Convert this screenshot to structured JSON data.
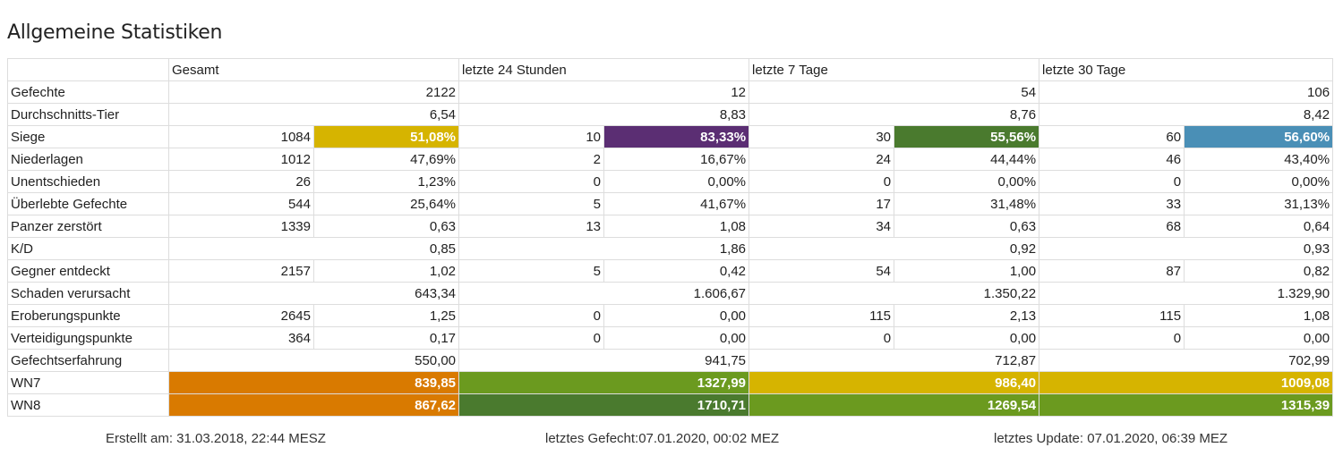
{
  "title": "Allgemeine Statistiken",
  "headers": [
    "Gesamt",
    "letzte 24 Stunden",
    "letzte 7 Tage",
    "letzte 30 Tage"
  ],
  "rows": [
    {
      "label": "Gefechte",
      "cells": [
        [
          "2122"
        ],
        [
          "12"
        ],
        [
          "54"
        ],
        [
          "106"
        ]
      ]
    },
    {
      "label": "Durchschnitts-Tier",
      "cells": [
        [
          "6,54"
        ],
        [
          "8,83"
        ],
        [
          "8,76"
        ],
        [
          "8,42"
        ]
      ]
    },
    {
      "label": "Siege",
      "cells": [
        [
          "1084",
          "51,08%"
        ],
        [
          "10",
          "83,33%"
        ],
        [
          "30",
          "55,56%"
        ],
        [
          "60",
          "56,60%"
        ]
      ]
    },
    {
      "label": "Niederlagen",
      "cells": [
        [
          "1012",
          "47,69%"
        ],
        [
          "2",
          "16,67%"
        ],
        [
          "24",
          "44,44%"
        ],
        [
          "46",
          "43,40%"
        ]
      ]
    },
    {
      "label": "Unentschieden",
      "cells": [
        [
          "26",
          "1,23%"
        ],
        [
          "0",
          "0,00%"
        ],
        [
          "0",
          "0,00%"
        ],
        [
          "0",
          "0,00%"
        ]
      ]
    },
    {
      "label": "Überlebte Gefechte",
      "cells": [
        [
          "544",
          "25,64%"
        ],
        [
          "5",
          "41,67%"
        ],
        [
          "17",
          "31,48%"
        ],
        [
          "33",
          "31,13%"
        ]
      ]
    },
    {
      "label": "Panzer zerstört",
      "cells": [
        [
          "1339",
          "0,63"
        ],
        [
          "13",
          "1,08"
        ],
        [
          "34",
          "0,63"
        ],
        [
          "68",
          "0,64"
        ]
      ]
    },
    {
      "label": "K/D",
      "cells": [
        [
          "0,85"
        ],
        [
          "1,86"
        ],
        [
          "0,92"
        ],
        [
          "0,93"
        ]
      ]
    },
    {
      "label": "Gegner entdeckt",
      "cells": [
        [
          "2157",
          "1,02"
        ],
        [
          "5",
          "0,42"
        ],
        [
          "54",
          "1,00"
        ],
        [
          "87",
          "0,82"
        ]
      ]
    },
    {
      "label": "Schaden verursacht",
      "cells": [
        [
          "643,34"
        ],
        [
          "1.606,67"
        ],
        [
          "1.350,22"
        ],
        [
          "1.329,90"
        ]
      ]
    },
    {
      "label": "Eroberungspunkte",
      "cells": [
        [
          "2645",
          "1,25"
        ],
        [
          "0",
          "0,00"
        ],
        [
          "115",
          "2,13"
        ],
        [
          "115",
          "1,08"
        ]
      ]
    },
    {
      "label": "Verteidigungspunkte",
      "cells": [
        [
          "364",
          "0,17"
        ],
        [
          "0",
          "0,00"
        ],
        [
          "0",
          "0,00"
        ],
        [
          "0",
          "0,00"
        ]
      ]
    },
    {
      "label": "Gefechtserfahrung",
      "cells": [
        [
          "550,00"
        ],
        [
          "941,75"
        ],
        [
          "712,87"
        ],
        [
          "702,99"
        ]
      ]
    },
    {
      "label": "WN7",
      "cells": [
        [
          "839,85"
        ],
        [
          "1327,99"
        ],
        [
          "986,40"
        ],
        [
          "1009,08"
        ]
      ],
      "colors": [
        "#d97a00",
        "#6b9a1f",
        "#d6b400",
        "#d6b400"
      ]
    },
    {
      "label": "WN8",
      "cells": [
        [
          "867,62"
        ],
        [
          "1710,71"
        ],
        [
          "1269,54"
        ],
        [
          "1315,39"
        ]
      ],
      "colors": [
        "#d97a00",
        "#4a7a2e",
        "#6b9a1f",
        "#6b9a1f"
      ]
    }
  ],
  "win_colors": [
    "#d6b400",
    "#5b2e73",
    "#4a7a2e",
    "#4a8fb6"
  ],
  "footer": {
    "created": "Erstellt am: 31.03.2018, 22:44 MESZ",
    "last_battle": "letztes Gefecht:07.01.2020, 00:02 MEZ",
    "last_update": "letztes Update: 07.01.2020, 06:39 MEZ"
  }
}
